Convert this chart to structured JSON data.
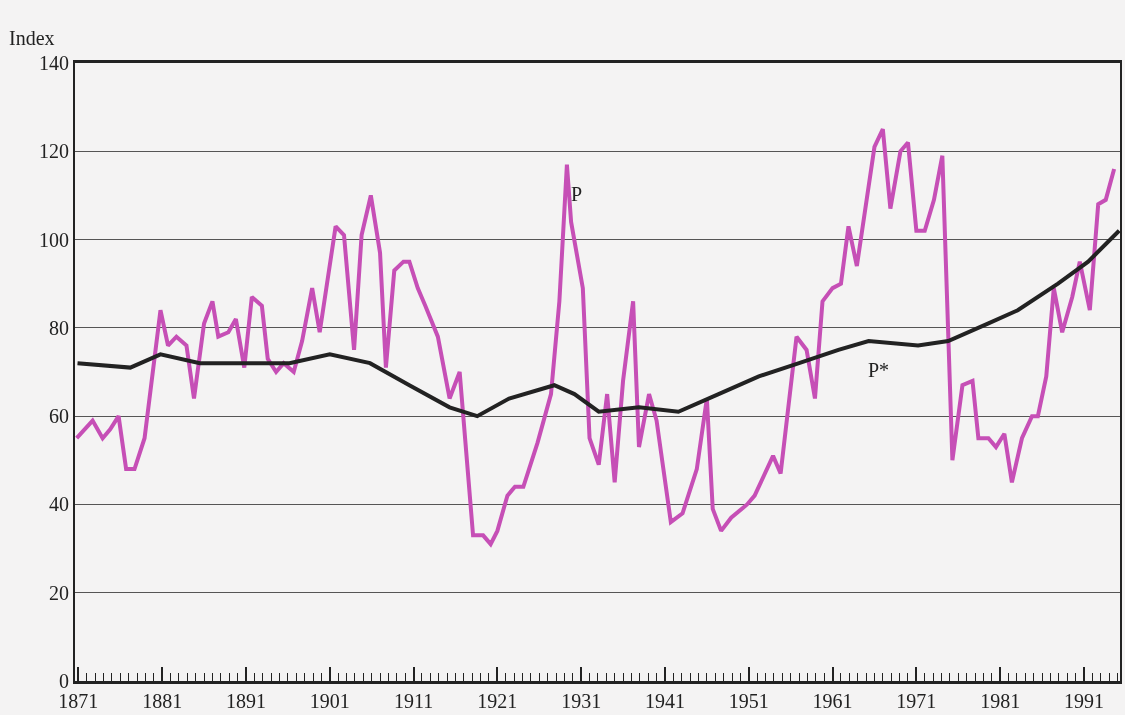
{
  "chart_data": {
    "type": "line",
    "ylabel": "Index",
    "xlim": [
      1870.6,
      1995.3
    ],
    "ylim": [
      0,
      140
    ],
    "yticks": [
      0,
      20,
      40,
      60,
      80,
      100,
      120,
      140
    ],
    "xticks": [
      1871,
      {
        "value": 1872,
        "label": null
      },
      {
        "value": 1873,
        "label": null
      },
      {
        "value": 1874,
        "label": null
      },
      {
        "value": 1875,
        "label": null
      },
      {
        "value": 1876,
        "label": null
      },
      {
        "value": 1877,
        "label": null
      },
      {
        "value": 1878,
        "label": null
      },
      {
        "value": 1879,
        "label": null
      },
      {
        "value": 1880,
        "label": null
      },
      1881,
      {
        "value": 1882,
        "label": null
      },
      {
        "value": 1883,
        "label": null
      },
      {
        "value": 1884,
        "label": null
      },
      {
        "value": 1885,
        "label": null
      },
      {
        "value": 1886,
        "label": null
      },
      {
        "value": 1887,
        "label": null
      },
      {
        "value": 1888,
        "label": null
      },
      {
        "value": 1889,
        "label": null
      },
      {
        "value": 1890,
        "label": null
      },
      1891,
      {
        "value": 1892,
        "label": null
      },
      {
        "value": 1893,
        "label": null
      },
      {
        "value": 1894,
        "label": null
      },
      {
        "value": 1895,
        "label": null
      },
      {
        "value": 1896,
        "label": null
      },
      {
        "value": 1897,
        "label": null
      },
      {
        "value": 1898,
        "label": null
      },
      {
        "value": 1899,
        "label": null
      },
      {
        "value": 1900,
        "label": null
      },
      1901,
      {
        "value": 1902,
        "label": null
      },
      {
        "value": 1903,
        "label": null
      },
      {
        "value": 1904,
        "label": null
      },
      {
        "value": 1905,
        "label": null
      },
      {
        "value": 1906,
        "label": null
      },
      {
        "value": 1907,
        "label": null
      },
      {
        "value": 1908,
        "label": null
      },
      {
        "value": 1909,
        "label": null
      },
      {
        "value": 1910,
        "label": null
      },
      1911,
      {
        "value": 1912,
        "label": null
      },
      {
        "value": 1913,
        "label": null
      },
      {
        "value": 1914,
        "label": null
      },
      {
        "value": 1915,
        "label": null
      },
      {
        "value": 1916,
        "label": null
      },
      {
        "value": 1917,
        "label": null
      },
      {
        "value": 1918,
        "label": null
      },
      {
        "value": 1919,
        "label": null
      },
      {
        "value": 1920,
        "label": null
      },
      1921,
      {
        "value": 1922,
        "label": null
      },
      {
        "value": 1923,
        "label": null
      },
      {
        "value": 1924,
        "label": null
      },
      {
        "value": 1925,
        "label": null
      },
      {
        "value": 1926,
        "label": null
      },
      {
        "value": 1927,
        "label": null
      },
      {
        "value": 1928,
        "label": null
      },
      {
        "value": 1929,
        "label": null
      },
      {
        "value": 1930,
        "label": null
      },
      1931,
      {
        "value": 1932,
        "label": null
      },
      {
        "value": 1933,
        "label": null
      },
      {
        "value": 1934,
        "label": null
      },
      {
        "value": 1935,
        "label": null
      },
      {
        "value": 1936,
        "label": null
      },
      {
        "value": 1937,
        "label": null
      },
      {
        "value": 1938,
        "label": null
      },
      {
        "value": 1939,
        "label": null
      },
      {
        "value": 1940,
        "label": null
      },
      1941,
      {
        "value": 1942,
        "label": null
      },
      {
        "value": 1943,
        "label": null
      },
      {
        "value": 1944,
        "label": null
      },
      {
        "value": 1945,
        "label": null
      },
      {
        "value": 1946,
        "label": null
      },
      {
        "value": 1947,
        "label": null
      },
      {
        "value": 1948,
        "label": null
      },
      {
        "value": 1949,
        "label": null
      },
      {
        "value": 1950,
        "label": null
      },
      1951,
      {
        "value": 1952,
        "label": null
      },
      {
        "value": 1953,
        "label": null
      },
      {
        "value": 1954,
        "label": null
      },
      {
        "value": 1955,
        "label": null
      },
      {
        "value": 1956,
        "label": null
      },
      {
        "value": 1957,
        "label": null
      },
      {
        "value": 1958,
        "label": null
      },
      {
        "value": 1959,
        "label": null
      },
      {
        "value": 1960,
        "label": null
      },
      1961,
      {
        "value": 1962,
        "label": null
      },
      {
        "value": 1963,
        "label": null
      },
      {
        "value": 1964,
        "label": null
      },
      {
        "value": 1965,
        "label": null
      },
      {
        "value": 1966,
        "label": null
      },
      {
        "value": 1967,
        "label": null
      },
      {
        "value": 1968,
        "label": null
      },
      {
        "value": 1969,
        "label": null
      },
      {
        "value": 1970,
        "label": null
      },
      1971,
      {
        "value": 1972,
        "label": null
      },
      {
        "value": 1973,
        "label": null
      },
      {
        "value": 1974,
        "label": null
      },
      {
        "value": 1975,
        "label": null
      },
      {
        "value": 1976,
        "label": null
      },
      {
        "value": 1977,
        "label": null
      },
      {
        "value": 1978,
        "label": null
      },
      {
        "value": 1979,
        "label": null
      },
      {
        "value": 1980,
        "label": null
      },
      1981,
      {
        "value": 1982,
        "label": null
      },
      {
        "value": 1983,
        "label": null
      },
      {
        "value": 1984,
        "label": null
      },
      {
        "value": 1985,
        "label": null
      },
      {
        "value": 1986,
        "label": null
      },
      {
        "value": 1987,
        "label": null
      },
      {
        "value": 1988,
        "label": null
      },
      {
        "value": 1989,
        "label": null
      },
      {
        "value": 1990,
        "label": null
      },
      1991,
      {
        "value": 1992,
        "label": null
      },
      {
        "value": 1993,
        "label": null
      },
      {
        "value": 1994,
        "label": null
      },
      {
        "value": 1995,
        "label": null
      }
    ],
    "grid": "y",
    "marker": "none",
    "line_style": "solid",
    "series": [
      {
        "color": "#c64fb6",
        "x": [
          1870.8,
          1872.7,
          1873.9,
          1874.8,
          1875.8,
          1876.7,
          1877.7,
          1878.9,
          1880.8,
          1881.7,
          1882.7,
          1883.9,
          1884.8,
          1886,
          1887,
          1887.7,
          1888.9,
          1889.8,
          1890.8,
          1891.7,
          1892.9,
          1893.6,
          1894.6,
          1895.5,
          1896.7,
          1897.7,
          1898.9,
          1899.8,
          1901.7,
          1902.7,
          1903.9,
          1904.8,
          1905.9,
          1907,
          1907.7,
          1908.7,
          1909.8,
          1910.5,
          1911.5,
          1912.4,
          1913.9,
          1915.3,
          1916.5,
          1918.1,
          1919.3,
          1920.2,
          1921,
          1922.2,
          1923.1,
          1924.1,
          1925.8,
          1927.4,
          1928.4,
          1929.3,
          1929.8,
          1931.2,
          1932,
          1933.1,
          1934.1,
          1935,
          1936,
          1937.2,
          1937.9,
          1939.1,
          1940,
          1941.7,
          1943.1,
          1944.8,
          1946,
          1946.7,
          1947.7,
          1948.9,
          1950.8,
          1951.7,
          1953.9,
          1954.8,
          1956.7,
          1957.9,
          1958.9,
          1959.8,
          1961,
          1962,
          1962.9,
          1963.9,
          1966,
          1967,
          1967.9,
          1969.1,
          1970,
          1971,
          1972,
          1973.1,
          1974.1,
          1975.3,
          1976.5,
          1977.7,
          1978.4,
          1979.6,
          1980.5,
          1981.5,
          1982.4,
          1983.6,
          1984.8,
          1985.5,
          1986.5,
          1987.4,
          1988.4,
          1989.6,
          1990.5,
          1991.7,
          1992.7,
          1993.6,
          1994.6
        ],
        "values": [
          55,
          59,
          55,
          57,
          60,
          48,
          48,
          55,
          84,
          76,
          78,
          76,
          64,
          81,
          86,
          78,
          79,
          82,
          71,
          87,
          85,
          73,
          70,
          72,
          70,
          77,
          89,
          79,
          103,
          101,
          75,
          101,
          110,
          97,
          71,
          93,
          95,
          95,
          89,
          85,
          78,
          64,
          70,
          33,
          33,
          31,
          34,
          42,
          44,
          44,
          54,
          65,
          86,
          117,
          104,
          89,
          55,
          49,
          65,
          45,
          68,
          86,
          53,
          65,
          59,
          36,
          38,
          48,
          64,
          39,
          34,
          37,
          40,
          42,
          51,
          47,
          78,
          75,
          64,
          86,
          89,
          90,
          103,
          94,
          121,
          125,
          107,
          120,
          122,
          102,
          102,
          109,
          119,
          50,
          67,
          68,
          55,
          55,
          53,
          56,
          45,
          55,
          60,
          60,
          69,
          89,
          79,
          87,
          95,
          84,
          108,
          109,
          116
        ]
      },
      {
        "color": "#222222",
        "x": [
          1870.9,
          1877.2,
          1880.8,
          1885.5,
          1891.5,
          1896.2,
          1901,
          1905.8,
          1910.5,
          1915.3,
          1918.6,
          1922.4,
          1927.8,
          1930.2,
          1933.1,
          1937.9,
          1942.6,
          1947.4,
          1952.2,
          1957,
          1961.7,
          1965.3,
          1971.2,
          1974.8,
          1979.6,
          1983.1,
          1987.9,
          1991.5,
          1995.2
        ],
        "values": [
          72,
          71,
          74,
          72,
          72,
          72,
          74,
          72,
          67,
          62,
          60,
          64,
          67,
          65,
          61,
          62,
          61,
          65,
          69,
          72,
          75,
          77,
          76,
          77,
          81,
          84,
          90,
          95,
          102
        ]
      }
    ],
    "annotations": [
      {
        "text": "P",
        "x": 1929.3,
        "y": 117
      },
      {
        "text": "P*",
        "x": 1965.3,
        "y": 77
      }
    ]
  }
}
